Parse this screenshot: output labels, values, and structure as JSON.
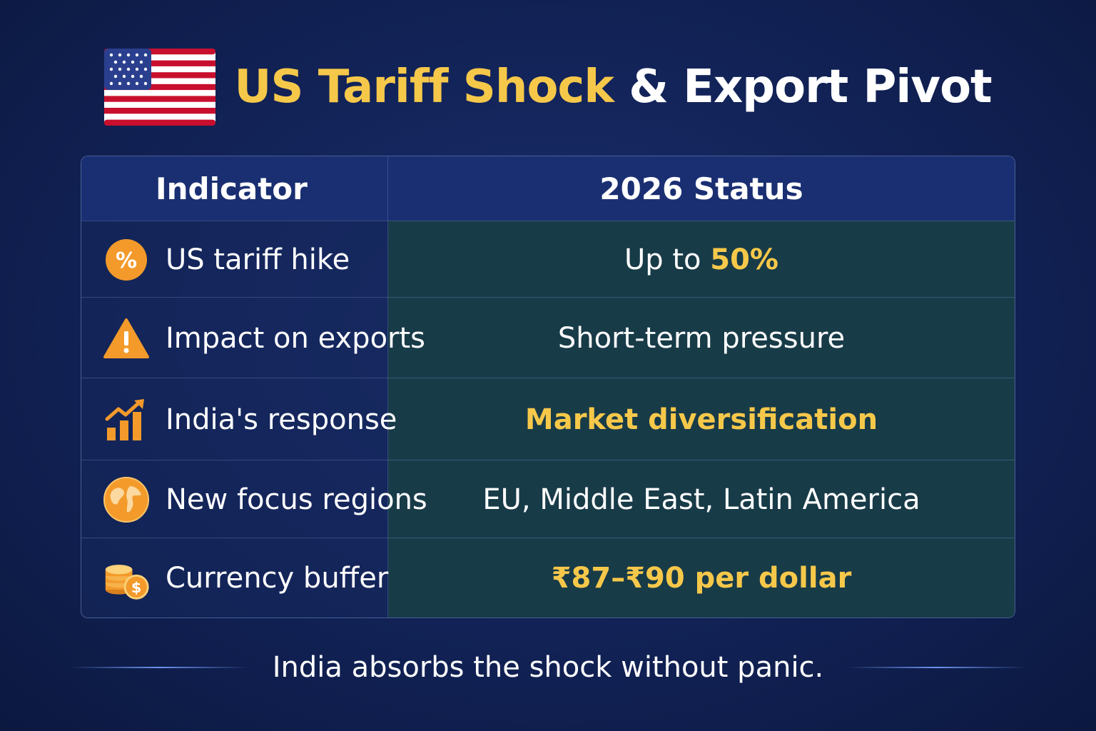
{
  "title": {
    "highlight": "US Tariff Shock",
    "rest": " & Export Pivot"
  },
  "flag_icon": "us-flag-icon",
  "table": {
    "headers": {
      "indicator": "Indicator",
      "status": "2026 Status"
    },
    "rows": [
      {
        "icon": "percent-icon",
        "indicator": "US tariff hike",
        "status_prefix": "Up to ",
        "status_value": "50%"
      },
      {
        "icon": "warning-icon",
        "indicator": "Impact on exports",
        "status": "Short-term pressure"
      },
      {
        "icon": "growth-chart-icon",
        "indicator": "India's response",
        "status": "Market diversification"
      },
      {
        "icon": "globe-icon",
        "indicator": "New focus regions",
        "status": "EU, Middle East, Latin America"
      },
      {
        "icon": "coins-icon",
        "indicator": "Currency buffer",
        "status": "₹87–₹90 per dollar"
      }
    ]
  },
  "footer": "India absorbs the shock without panic.",
  "colors": {
    "accent": "#f6c84a",
    "background": "#13245a",
    "status_column": "#183b48",
    "icon_orange": "#f39a2b"
  }
}
